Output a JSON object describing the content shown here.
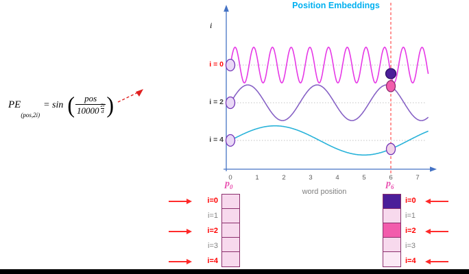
{
  "colors": {
    "formula_arrow": "#e02020",
    "bottom_bar": "#000000"
  },
  "formula": {
    "lhs": "PE",
    "lhs_sub": "(pos,2i)",
    "op": "= sin",
    "numerator": "pos",
    "den_base": "10000",
    "exp_num": "2i",
    "exp_den": "d"
  },
  "chart_data": {
    "type": "line",
    "title": "Position Embeddings",
    "title_color": "#00b0f0",
    "xlabel": "word position",
    "ylabel": "i",
    "x_ticks": [
      "0",
      "1",
      "2",
      "3",
      "4",
      "5",
      "6",
      "7"
    ],
    "x_range": [
      0,
      7.4
    ],
    "highlight_x": 6,
    "axis_color": "#4472c4",
    "grid_color": "#c3c3c3",
    "tick_color": "#595959",
    "highlight_line_color": "#ff2a2a",
    "start_marker_fill": "#ead9f7",
    "marker_stroke": "#7436b8",
    "series": [
      {
        "name": "i = 0",
        "i": 0,
        "frequency": 1.43,
        "amplitude": 1.0,
        "color": "#e637e6",
        "label_color": "#ff0000",
        "marker_at_highlight": "#4b1e99",
        "marker_stroke": "#2e1065"
      },
      {
        "name": "i = 2",
        "i": 2,
        "frequency": 0.385,
        "amplitude": 1.0,
        "color": "#8661c5",
        "label_color": "#404040",
        "marker_at_highlight": "#f25cac",
        "marker_stroke": "#8a2d6b"
      },
      {
        "name": "i = 4",
        "i": 4,
        "frequency": 0.15,
        "amplitude": 0.82,
        "color": "#27b2d9",
        "label_color": "#404040",
        "marker_at_highlight": "#f2d3e8",
        "marker_stroke": "#7436b8"
      }
    ]
  },
  "vectors": {
    "arrow_color": "#ff2a2a",
    "left": {
      "label_base": "p",
      "label_sub": "0",
      "label_color": "#e94fb0",
      "cell_border": "#8a2d6b",
      "rows": [
        {
          "label": "i=0",
          "label_color": "#ff0000",
          "cell": "#f7d9ed",
          "arrow": true
        },
        {
          "label": "i=1",
          "label_color": "#7f7f7f",
          "cell": "#f7d9ed",
          "arrow": false
        },
        {
          "label": "i=2",
          "label_color": "#ff0000",
          "cell": "#f7d9ed",
          "arrow": true
        },
        {
          "label": "i=3",
          "label_color": "#7f7f7f",
          "cell": "#f7d9ed",
          "arrow": false
        },
        {
          "label": "i=4",
          "label_color": "#ff0000",
          "cell": "#f7d9ed",
          "arrow": true
        }
      ]
    },
    "right": {
      "label_base": "p",
      "label_sub": "6",
      "label_color": "#e94fb0",
      "cell_border": "#8a2d6b",
      "rows": [
        {
          "label": "i=0",
          "label_color": "#ff0000",
          "cell": "#4b1e99",
          "arrow": true
        },
        {
          "label": "i=1",
          "label_color": "#7f7f7f",
          "cell": "#f7d9ed",
          "arrow": false
        },
        {
          "label": "i=2",
          "label_color": "#ff0000",
          "cell": "#f25cac",
          "arrow": true
        },
        {
          "label": "i=3",
          "label_color": "#7f7f7f",
          "cell": "#f7d9ed",
          "arrow": false
        },
        {
          "label": "i=4",
          "label_color": "#ff0000",
          "cell": "#fbe9f5",
          "arrow": true
        }
      ]
    }
  }
}
